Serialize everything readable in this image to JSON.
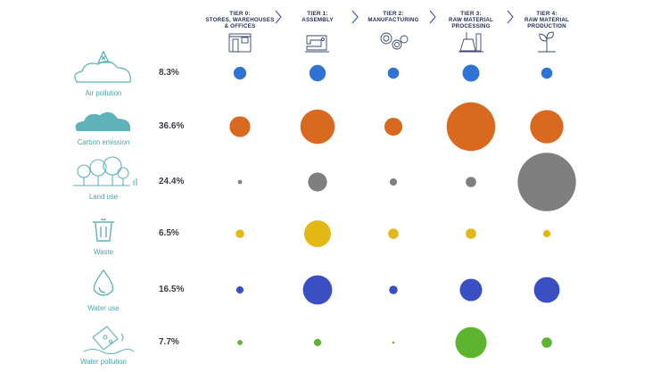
{
  "chart_data": {
    "type": "bubble-matrix",
    "tiers": [
      {
        "code": "TIER 0:",
        "lines": [
          "STORES, WAREHOUSES",
          "& OFFICES"
        ]
      },
      {
        "code": "TIER 1:",
        "lines": [
          "ASSEMBLY"
        ]
      },
      {
        "code": "TIER 2:",
        "lines": [
          "MANUFACTURING"
        ]
      },
      {
        "code": "TIER 3:",
        "lines": [
          "RAW MATERIAL",
          "PROCESSING"
        ]
      },
      {
        "code": "TIER 4:",
        "lines": [
          "RAW MATERIAL",
          "PRODUCTION"
        ]
      }
    ],
    "categories": [
      {
        "label": "Air pollution",
        "percent": "8.3%",
        "color": "#2f73d4",
        "icon": "cloud-hazard-icon",
        "values": [
          0.9,
          1.5,
          0.7,
          1.6,
          0.7
        ]
      },
      {
        "label": "Carbon emission",
        "percent": "36.6%",
        "color": "#d8691f",
        "icon": "cloud-icon",
        "values": [
          2.4,
          6.6,
          1.8,
          13.2,
          6.2
        ]
      },
      {
        "label": "Land use",
        "percent": "24.4%",
        "color": "#7f7f7f",
        "icon": "trees-icon",
        "values": [
          0.1,
          2.0,
          0.3,
          0.6,
          19.0
        ]
      },
      {
        "label": "Waste",
        "percent": "6.5%",
        "color": "#e4b814",
        "icon": "trash-bin-icon",
        "values": [
          0.4,
          4.0,
          0.6,
          0.6,
          0.3
        ]
      },
      {
        "label": "Water use",
        "percent": "16.5%",
        "color": "#3a4fc4",
        "icon": "water-drop-icon",
        "values": [
          0.3,
          4.8,
          0.4,
          2.8,
          3.7
        ]
      },
      {
        "label": "Water pollution",
        "percent": "7.7%",
        "color": "#5db42e",
        "icon": "polluted-water-icon",
        "values": [
          0.15,
          0.3,
          0.03,
          5.4,
          0.6
        ]
      }
    ]
  }
}
